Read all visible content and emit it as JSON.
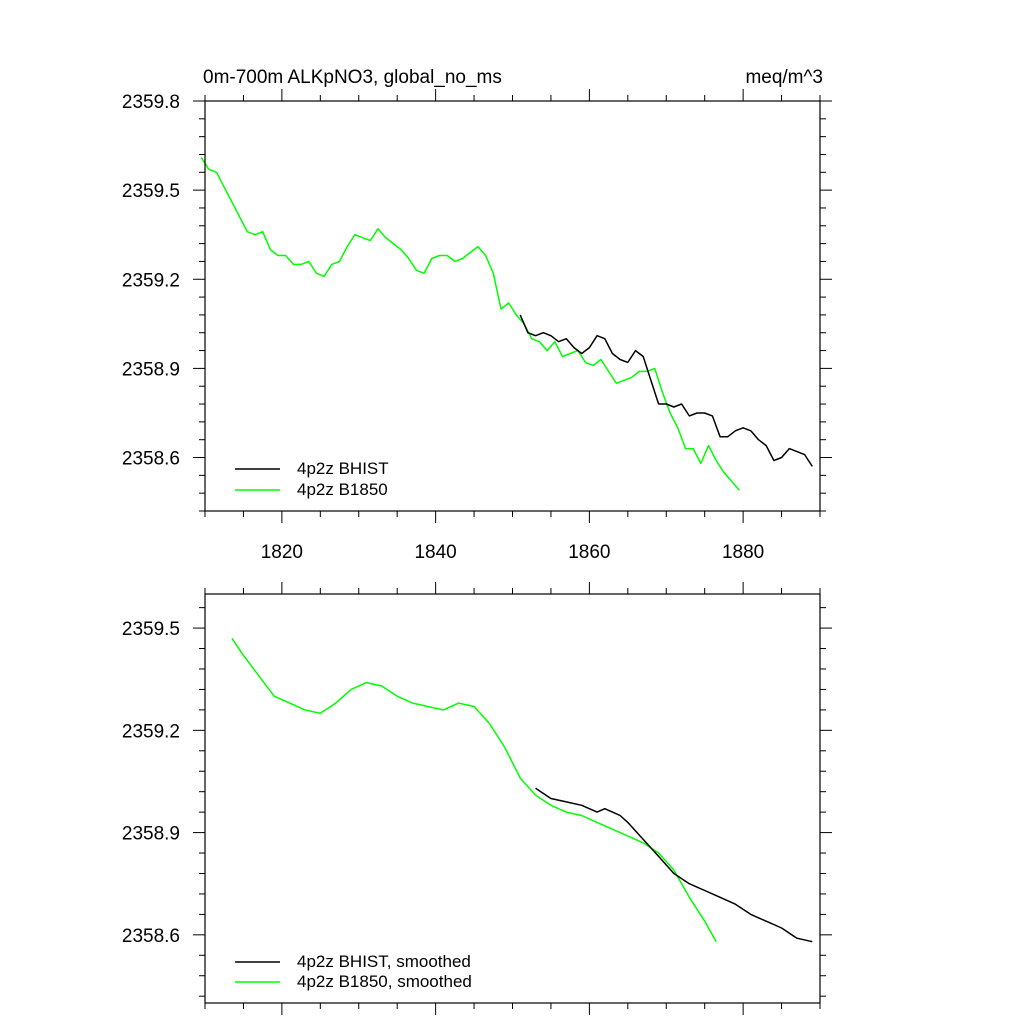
{
  "colors": {
    "bhist": "#000000",
    "b1850": "#00ff00"
  },
  "chart_data": [
    {
      "type": "line",
      "title_left": "0m-700m ALKpNO3, global_no_ms",
      "title_right": "meq/m^3",
      "xlim": [
        1810,
        1890
      ],
      "ylim": [
        2358.42,
        2359.8
      ],
      "x_ticks": [
        1820,
        1840,
        1860,
        1880
      ],
      "x_tick_labels": [
        "1820",
        "1840",
        "1860",
        "1880"
      ],
      "y_ticks": [
        2359.8,
        2359.5,
        2359.2,
        2358.9,
        2358.6
      ],
      "y_tick_labels": [
        "2359.8",
        "2359.5",
        "2359.2",
        "2358.9",
        "2358.6"
      ],
      "legend_position": "bottom-left",
      "series": [
        {
          "name": "4p2z BHIST",
          "color": "black",
          "x": [
            1851,
            1852,
            1853,
            1854,
            1855,
            1856,
            1857,
            1858,
            1859,
            1860,
            1861,
            1862,
            1863,
            1864,
            1865,
            1866,
            1867,
            1868,
            1869,
            1870,
            1871,
            1872,
            1873,
            1874,
            1875,
            1876,
            1877,
            1878,
            1879,
            1880,
            1881,
            1882,
            1883,
            1884,
            1885,
            1886,
            1887,
            1888,
            1889
          ],
          "y": [
            2359.08,
            2359.02,
            2359.01,
            2359.02,
            2359.01,
            2358.99,
            2359.0,
            2358.97,
            2358.95,
            2358.97,
            2359.01,
            2359.0,
            2358.95,
            2358.93,
            2358.92,
            2358.96,
            2358.94,
            2358.86,
            2358.78,
            2358.78,
            2358.77,
            2358.78,
            2358.74,
            2358.75,
            2358.75,
            2358.74,
            2358.67,
            2358.67,
            2358.69,
            2358.7,
            2358.69,
            2358.66,
            2358.64,
            2358.59,
            2358.6,
            2358.63,
            2358.62,
            2358.61,
            2358.57
          ]
        },
        {
          "name": "4p2z B1850",
          "color": "green",
          "x": [
            1809.5,
            1810.5,
            1811.5,
            1812.5,
            1813.5,
            1814.5,
            1815.5,
            1816.5,
            1817.5,
            1818.5,
            1819.5,
            1820.5,
            1821.5,
            1822.5,
            1823.5,
            1824.5,
            1825.5,
            1826.5,
            1827.5,
            1828.5,
            1829.5,
            1830.5,
            1831.5,
            1832.5,
            1833.5,
            1834.5,
            1835.5,
            1836.5,
            1837.5,
            1838.5,
            1839.5,
            1840.5,
            1841.5,
            1842.5,
            1843.5,
            1844.5,
            1845.5,
            1846.5,
            1847.5,
            1848.5,
            1849.5,
            1850.5,
            1851.5,
            1852.5,
            1853.5,
            1854.5,
            1855.5,
            1856.5,
            1857.5,
            1858.5,
            1859.5,
            1860.5,
            1861.5,
            1862.5,
            1863.5,
            1864.5,
            1865.5,
            1866.5,
            1867.5,
            1868.5,
            1869.5,
            1870.5,
            1871.5,
            1872.5,
            1873.5,
            1874.5,
            1875.5,
            1876.5,
            1877.5,
            1878.5,
            1879.5
          ],
          "y": [
            2359.61,
            2359.57,
            2359.56,
            2359.51,
            2359.46,
            2359.41,
            2359.36,
            2359.35,
            2359.36,
            2359.3,
            2359.28,
            2359.28,
            2359.25,
            2359.25,
            2359.26,
            2359.22,
            2359.21,
            2359.25,
            2359.26,
            2359.31,
            2359.35,
            2359.34,
            2359.33,
            2359.37,
            2359.34,
            2359.32,
            2359.3,
            2359.27,
            2359.23,
            2359.22,
            2359.27,
            2359.28,
            2359.28,
            2359.26,
            2359.27,
            2359.29,
            2359.31,
            2359.28,
            2359.22,
            2359.1,
            2359.12,
            2359.08,
            2359.05,
            2359.0,
            2358.99,
            2358.96,
            2358.99,
            2358.94,
            2358.95,
            2358.96,
            2358.92,
            2358.91,
            2358.93,
            2358.89,
            2358.85,
            2358.86,
            2358.87,
            2358.89,
            2358.89,
            2358.9,
            2358.82,
            2358.75,
            2358.7,
            2358.63,
            2358.63,
            2358.58,
            2358.64,
            2358.59,
            2358.55,
            2358.52,
            2358.49
          ]
        }
      ]
    },
    {
      "type": "line",
      "xlim": [
        1810,
        1890
      ],
      "ylim": [
        2358.4,
        2359.6
      ],
      "x_ticks": [
        1820,
        1840,
        1860,
        1880
      ],
      "y_ticks": [
        2359.5,
        2359.2,
        2358.9,
        2358.6
      ],
      "y_tick_labels": [
        "2359.5",
        "2359.2",
        "2358.9",
        "2358.6"
      ],
      "legend_position": "bottom-left",
      "series": [
        {
          "name": "4p2z BHIST, smoothed",
          "color": "black",
          "x": [
            1853,
            1855,
            1857,
            1859,
            1861,
            1862,
            1863,
            1864,
            1865,
            1867,
            1869,
            1871,
            1873,
            1875,
            1877,
            1879,
            1881,
            1883,
            1885,
            1887,
            1889
          ],
          "y": [
            2359.03,
            2359.0,
            2358.99,
            2358.98,
            2358.96,
            2358.97,
            2358.96,
            2358.95,
            2358.93,
            2358.88,
            2358.83,
            2358.78,
            2358.75,
            2358.73,
            2358.71,
            2358.69,
            2358.66,
            2358.64,
            2358.62,
            2358.59,
            2358.58
          ]
        },
        {
          "name": "4p2z B1850, smoothed",
          "color": "green",
          "x": [
            1813.5,
            1815,
            1817,
            1819,
            1821,
            1823,
            1825,
            1827,
            1829,
            1831,
            1833,
            1835,
            1837,
            1839,
            1841,
            1843,
            1845,
            1847,
            1849,
            1851,
            1853,
            1855,
            1857,
            1859,
            1861,
            1863,
            1865,
            1867,
            1869,
            1871,
            1873,
            1875,
            1876.5
          ],
          "y": [
            2359.47,
            2359.42,
            2359.36,
            2359.3,
            2359.28,
            2359.26,
            2359.25,
            2359.28,
            2359.32,
            2359.34,
            2359.33,
            2359.3,
            2359.28,
            2359.27,
            2359.26,
            2359.28,
            2359.27,
            2359.22,
            2359.15,
            2359.06,
            2359.01,
            2358.98,
            2358.96,
            2358.95,
            2358.93,
            2358.91,
            2358.89,
            2358.87,
            2358.84,
            2358.79,
            2358.71,
            2358.64,
            2358.58
          ]
        }
      ]
    }
  ]
}
